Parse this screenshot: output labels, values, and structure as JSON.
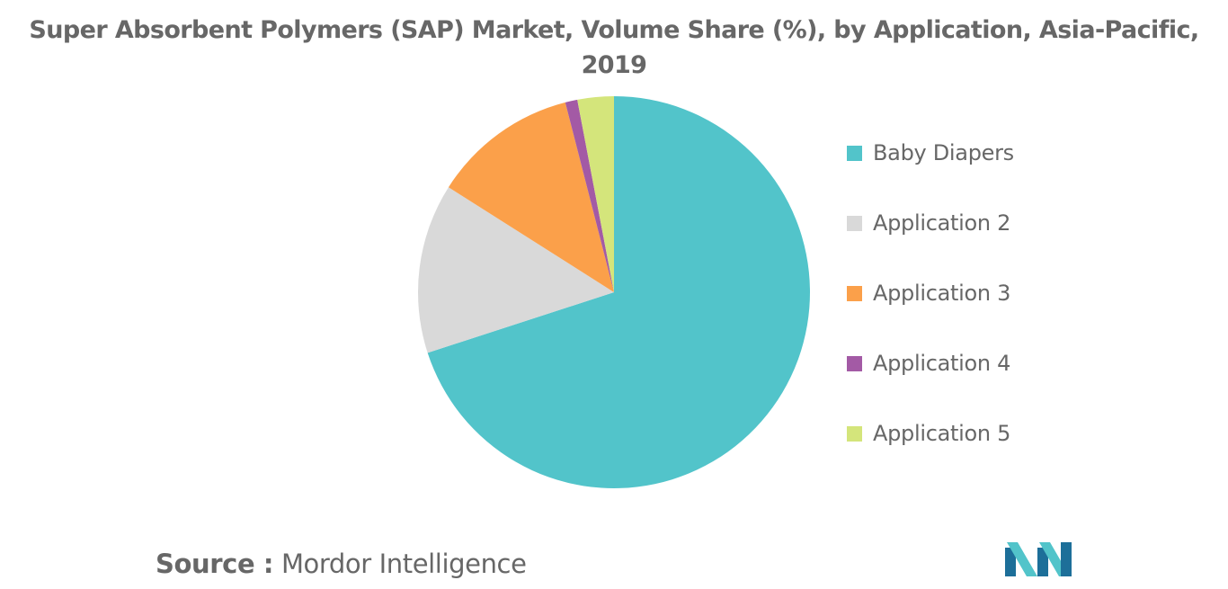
{
  "chart_data": {
    "type": "pie",
    "title_lines": [
      "Super Absorbent Polymers (SAP) Market, Volume Share (%), by Application, Asia-Pacific,",
      "2019"
    ],
    "slices": [
      {
        "label": "Baby Diapers",
        "value": 70,
        "color": "#52c4ca"
      },
      {
        "label": "Application 2",
        "value": 14,
        "color": "#d9d9d9"
      },
      {
        "label": "Application 3",
        "value": 12,
        "color": "#fba04a"
      },
      {
        "label": "Application 4",
        "value": 1,
        "color": "#a35aa5"
      },
      {
        "label": "Application 5",
        "value": 3,
        "color": "#d4e57b"
      }
    ],
    "legend_position": "right"
  },
  "source": {
    "key": "Source :",
    "value": "Mordor Intelligence"
  },
  "logo": {
    "colors": [
      "#1d6f99",
      "#52c4ca"
    ]
  }
}
